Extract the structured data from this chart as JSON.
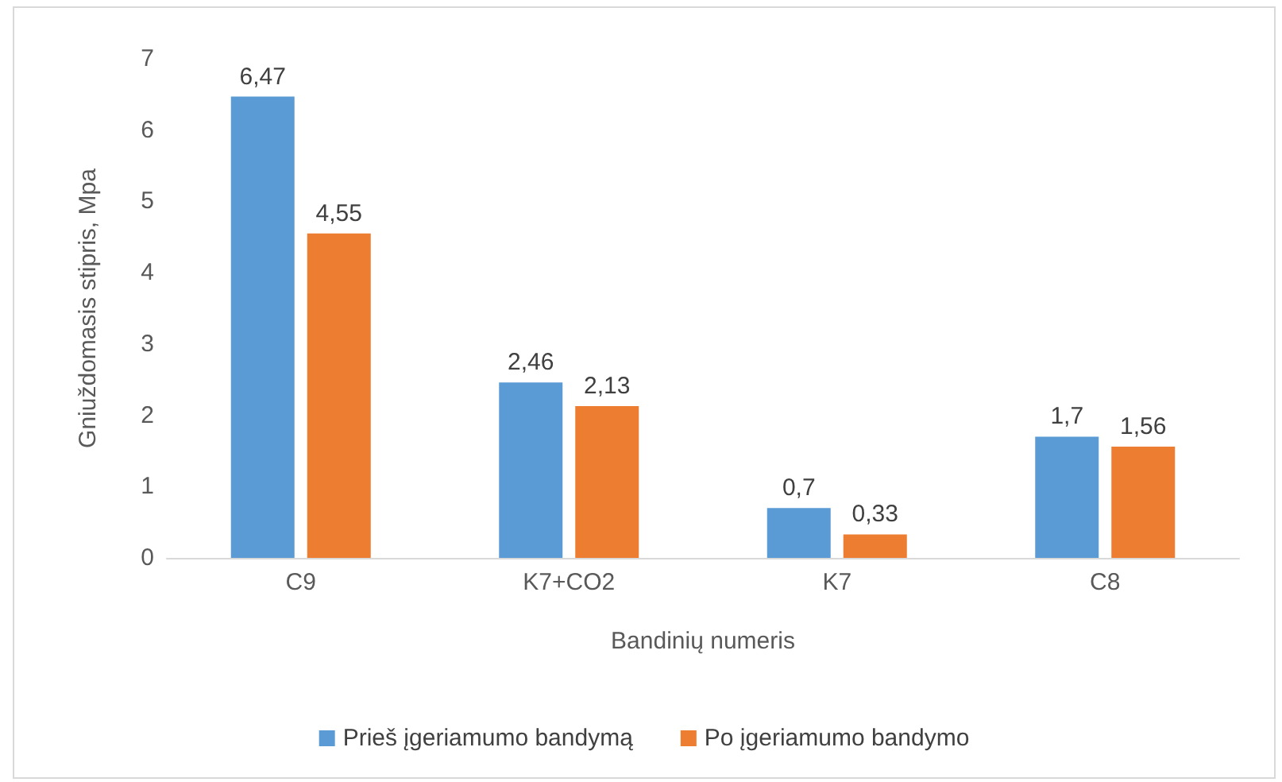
{
  "chart_data": {
    "type": "bar",
    "xlabel": "Bandinių numeris",
    "ylabel": "Gniuždomasis stipris, Mpa",
    "categories": [
      "C9",
      "K7+CO2",
      "K7",
      "C8"
    ],
    "series": [
      {
        "name": "Prieš įgeriamumo bandymą",
        "color": "#5b9bd5",
        "values": [
          6.47,
          2.46,
          0.7,
          1.7
        ],
        "value_labels": [
          "6,47",
          "2,46",
          "0,7",
          "1,7"
        ]
      },
      {
        "name": "Po įgeriamumo bandymo",
        "color": "#ed7d31",
        "values": [
          4.55,
          2.13,
          0.33,
          1.56
        ],
        "value_labels": [
          "4,55",
          "2,13",
          "0,33",
          "1,56"
        ]
      }
    ],
    "ylim": [
      0,
      7
    ],
    "yticks": [
      0,
      1,
      2,
      3,
      4,
      5,
      6,
      7
    ],
    "grid": false,
    "legend": "bottom"
  }
}
